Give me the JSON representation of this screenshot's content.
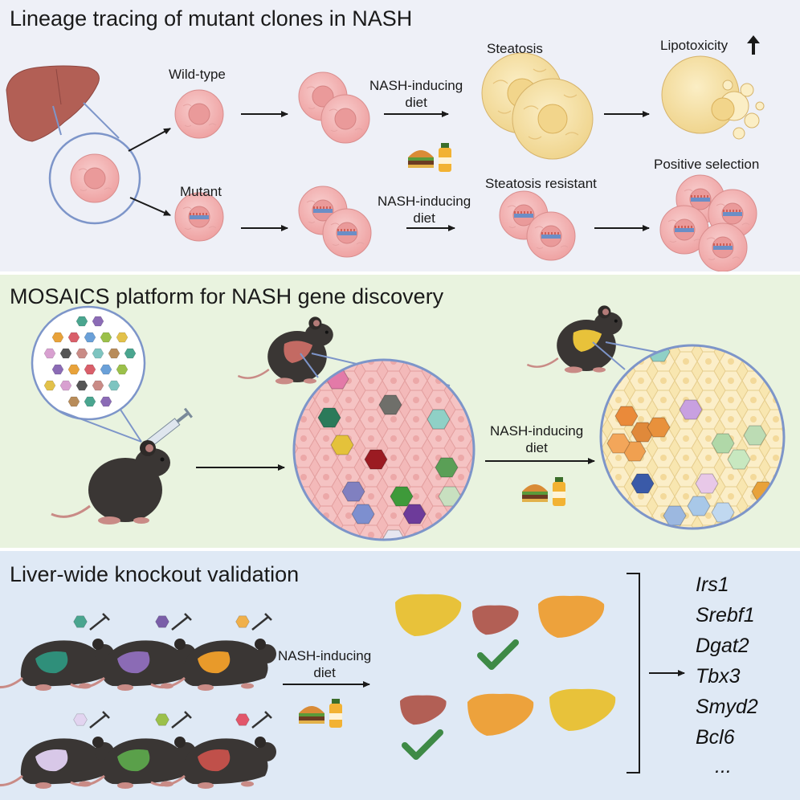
{
  "panel1": {
    "title": "Lineage tracing of mutant clones in NASH",
    "wildtype_label": "Wild-type",
    "mutant_label": "Mutant",
    "diet_line1": "NASH-inducing",
    "diet_line2": "diet",
    "steatosis_label": "Steatosis",
    "resistant_label": "Steatosis resistant",
    "lipotoxicity_label": "Lipotoxicity",
    "positive_selection_label": "Positive selection"
  },
  "panel2": {
    "title": "MOSAICS platform for NASH gene discovery",
    "diet_line1": "NASH-inducing",
    "diet_line2": "diet"
  },
  "panel3": {
    "title": "Liver-wide knockout validation",
    "diet_line1": "NASH-inducing",
    "diet_line2": "diet",
    "genes": [
      "Irs1",
      "Srebf1",
      "Dgat2",
      "Tbx3",
      "Smyd2",
      "Bcl6",
      "..."
    ]
  },
  "colors": {
    "panel1_bg": "#eef0f7",
    "panel2_bg": "#e9f3df",
    "panel3_bg": "#dfe9f5",
    "liver": "#b25f55",
    "fatty_liver": "#e8c23a",
    "cell_pink": "#f3b9b9",
    "cell_yellow": "#f6e3a6",
    "check_green": "#3e8a46"
  }
}
